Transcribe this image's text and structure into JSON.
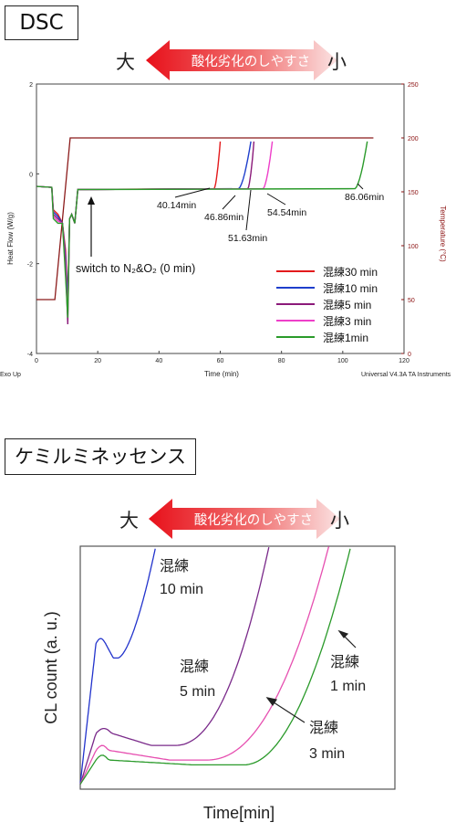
{
  "dsc": {
    "title": "DSC",
    "oxidation_arrow": {
      "left": "大",
      "center": "酸化劣化のしやすさ",
      "right": "小"
    },
    "chart_data": {
      "type": "line",
      "xlabel": "Time (min)",
      "ylabel": "Heat Flow (W/g)",
      "y2label": "Temperature (°C)",
      "corner_left": "Exo Up",
      "corner_right": "Universal V4.3A TA Instruments",
      "xlim": [
        0,
        120
      ],
      "ylim": [
        -4,
        2
      ],
      "y2lim": [
        0,
        250
      ],
      "x_ticks": [
        "0",
        "20",
        "40",
        "60",
        "80",
        "100",
        "120"
      ],
      "y_ticks": [
        "2",
        "0",
        "-2",
        "-4"
      ],
      "y2_ticks": [
        "250",
        "200",
        "150",
        "100",
        "50",
        "0"
      ],
      "annotation_switch": "switch to N₂&O₂ (0 min)",
      "onset_labels": [
        "40.14min",
        "46.86min",
        "51.63min",
        "54.54min",
        "86.06min"
      ],
      "temperature_profile": {
        "x": [
          0,
          6,
          11,
          110
        ],
        "y": [
          50,
          50,
          200,
          200
        ]
      },
      "series": [
        {
          "name": "混練30 min",
          "color": "#e31a1c",
          "onset": 58,
          "end": 60
        },
        {
          "name": "混練10 min",
          "color": "#1f3fcc",
          "onset": 66,
          "end": 70
        },
        {
          "name": "混練5 min",
          "color": "#8b1a7a",
          "onset": 69,
          "end": 71
        },
        {
          "name": "混練3 min",
          "color": "#ee3fc9",
          "onset": 74,
          "end": 77
        },
        {
          "name": "混練1min",
          "color": "#2a9a2a",
          "onset": 104,
          "end": 108
        }
      ]
    }
  },
  "cl": {
    "title": "ケミルミネッセンス",
    "oxidation_arrow": {
      "left": "大",
      "center": "酸化劣化のしやすさ",
      "right": "小"
    },
    "chart_data": {
      "type": "line",
      "xlabel": "Time[min]",
      "ylabel": "CL count (a. u.)",
      "grid": false,
      "series": [
        {
          "name": "混練 10 min",
          "color": "#2233cc"
        },
        {
          "name": "混練 5 min",
          "color": "#7a2a8a"
        },
        {
          "name": "混練 3 min",
          "color": "#e64fb0"
        },
        {
          "name": "混練 1 min",
          "color": "#2a9a2a"
        }
      ],
      "labels": {
        "l10_a": "混練",
        "l10_b": "10 min",
        "l5_a": "混練",
        "l5_b": "5 min",
        "l1_a": "混練",
        "l1_b": "1 min",
        "l3_a": "混練",
        "l3_b": "3 min"
      }
    }
  }
}
